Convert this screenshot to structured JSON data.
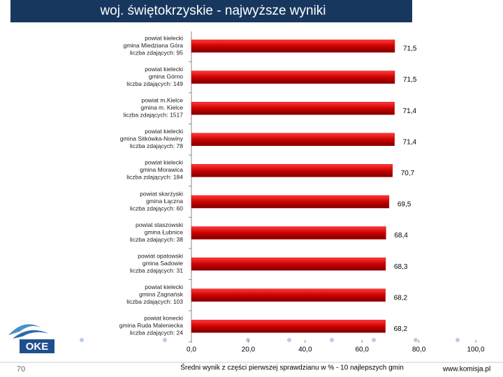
{
  "header": {
    "title": "woj. świętokrzyskie - najwyższe wyniki"
  },
  "chart_data": {
    "type": "hbar",
    "categories": [
      [
        "powiat kielecki",
        "gmina Miedziana Góra",
        "liczba zdających: 95"
      ],
      [
        "powiat kielecki",
        "gmina Górno",
        "liczba zdających: 149"
      ],
      [
        "powiat m.Kielce",
        "gmina m. Kielce",
        "liczba zdających: 1517"
      ],
      [
        "powiat kielecki",
        "gmina Sitkówka-Nowiny",
        "liczba zdających: 78"
      ],
      [
        "powiat kielecki",
        "gmina Morawica",
        "liczba zdających: 184"
      ],
      [
        "powiat skarżyski",
        "gmina Łączna",
        "liczba zdających: 60"
      ],
      [
        "powiat staszowski",
        "gmina Łubnice",
        "liczba zdających: 38"
      ],
      [
        "powiat opatowski",
        "gmina Sadowie",
        "liczba zdających: 31"
      ],
      [
        "powiat kielecki",
        "gmina Zagnańsk",
        "liczba zdających: 103"
      ],
      [
        "powiat konecki",
        "gmina Ruda Maleniecka",
        "liczba zdających: 24"
      ]
    ],
    "values": [
      71.5,
      71.5,
      71.4,
      71.4,
      70.7,
      69.5,
      68.4,
      68.3,
      68.2,
      68.2
    ],
    "value_labels": [
      "71,5",
      "71,5",
      "71,4",
      "71,4",
      "70,7",
      "69,5",
      "68,4",
      "68,3",
      "68,2",
      "68,2"
    ],
    "color": "#cc0000",
    "xlim": [
      0,
      100
    ],
    "xticks": [
      {
        "value": 0,
        "label": "0,0"
      },
      {
        "value": 20,
        "label": "20,0"
      },
      {
        "value": 40,
        "label": "40,0"
      },
      {
        "value": 60,
        "label": "60,0"
      },
      {
        "value": 80,
        "label": "80,0"
      },
      {
        "value": 100,
        "label": "100,0"
      }
    ],
    "xlabel": "Średni wynik z części pierwszej sprawdzianu w % - 10 najlepszych gmin"
  },
  "footer": {
    "page": "70",
    "url": "www.komisja.pl",
    "logo": "OKE"
  }
}
